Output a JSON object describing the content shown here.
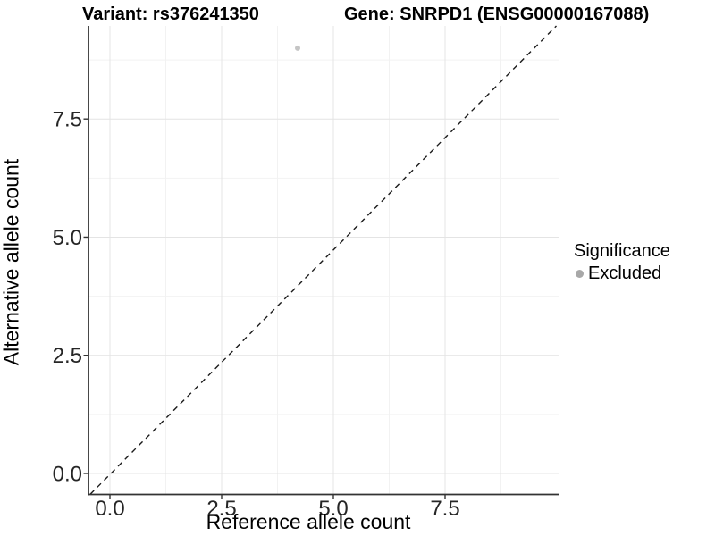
{
  "page": {
    "title_variant": "Variant: rs376241350",
    "title_gene": "Gene: SNRPD1 (ENSG00000167088)"
  },
  "chart_data": {
    "type": "scatter",
    "xlabel": "Reference allele count",
    "ylabel": "Alternative allele count",
    "xlim": [
      -0.48,
      10.04
    ],
    "ylim": [
      -0.445,
      9.47
    ],
    "x_ticks": [
      0,
      2.5,
      5,
      7.5
    ],
    "x_tick_labels": [
      "0.0",
      "2.5",
      "5.0",
      "7.5"
    ],
    "y_ticks": [
      0,
      2.5,
      5,
      7.5
    ],
    "y_tick_labels": [
      "0.0",
      "2.5",
      "5.0",
      "7.5"
    ],
    "minor_grid_offset": 1.25,
    "grid": true,
    "points": [
      {
        "x": 4.2,
        "y": 9.0,
        "significance": "Excluded",
        "color": "#c5c5c5",
        "radius": 3
      }
    ],
    "reference_line": {
      "description": "dashed identity diagonal y = x across panel",
      "x1": -0.44,
      "y1": -0.44,
      "x2": 9.99,
      "y2": 9.47,
      "color": "#1a1a1a",
      "dash": "6,5"
    },
    "legend": {
      "title": "Significance",
      "position": "right",
      "items": [
        {
          "label": "Excluded",
          "color": "#a8a8a8"
        }
      ]
    },
    "colors": {
      "background": "#ffffff",
      "axis_line": "#333333",
      "tick_label": "#262626",
      "grid_major": "#e4e4e4",
      "grid_minor": "#f2f2f2"
    }
  }
}
